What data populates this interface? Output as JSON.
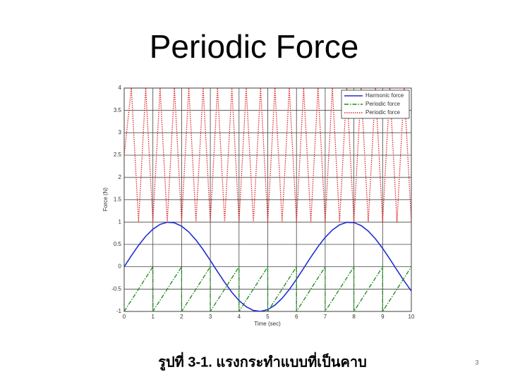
{
  "chart_data": {
    "type": "line",
    "title": "Periodic Force",
    "xlabel": "Time (sec)",
    "ylabel": "Force (N)",
    "xlim": [
      0,
      10
    ],
    "ylim": [
      -1,
      4
    ],
    "xticks": [
      0,
      1,
      2,
      3,
      4,
      5,
      6,
      7,
      8,
      9,
      10
    ],
    "yticks": [
      -1,
      -0.5,
      0,
      0.5,
      1,
      1.5,
      2,
      2.5,
      3,
      3.5,
      4
    ],
    "grid": true,
    "legend": "upper right",
    "series": [
      {
        "name": "Harmonic force",
        "color": "#1f2fd0",
        "style": "solid",
        "x": [
          0,
          0.25,
          0.5,
          0.75,
          1,
          1.25,
          1.5,
          1.75,
          2,
          2.25,
          2.5,
          2.75,
          3,
          3.25,
          3.5,
          3.75,
          4,
          4.25,
          4.5,
          4.75,
          5,
          5.25,
          5.5,
          5.75,
          6,
          6.25,
          6.5,
          6.75,
          7,
          7.25,
          7.5,
          7.75,
          8,
          8.25,
          8.5,
          8.75,
          9,
          9.25,
          9.5,
          9.75,
          10
        ],
        "values": [
          0,
          0.247,
          0.479,
          0.682,
          0.841,
          0.949,
          0.997,
          0.984,
          0.909,
          0.778,
          0.598,
          0.382,
          0.141,
          -0.108,
          -0.351,
          -0.572,
          -0.757,
          -0.895,
          -0.978,
          -0.999,
          -0.959,
          -0.859,
          -0.706,
          -0.51,
          -0.279,
          -0.033,
          0.215,
          0.45,
          0.657,
          0.823,
          0.938,
          0.995,
          0.989,
          0.923,
          0.798,
          0.625,
          0.412,
          0.174,
          -0.075,
          -0.319,
          -0.544
        ]
      },
      {
        "name": "Periodic force",
        "color": "#1a8a1a",
        "style": "dashdot",
        "x": [
          0,
          1,
          1,
          2,
          2,
          3,
          3,
          4,
          4,
          5,
          5,
          6,
          6,
          7,
          7,
          8,
          8,
          9,
          9,
          10
        ],
        "values": [
          -1,
          0,
          -1,
          0,
          -1,
          0,
          -1,
          0,
          -1,
          0,
          -1,
          0,
          -1,
          0,
          -1,
          0,
          -1,
          0,
          -1,
          0
        ]
      },
      {
        "name": "Periodic force",
        "color": "#e0252a",
        "style": "dotted",
        "x": [
          0,
          0.25,
          0.5,
          0.75,
          1,
          1.25,
          1.5,
          1.75,
          2,
          2.25,
          2.5,
          2.75,
          3,
          3.25,
          3.5,
          3.75,
          4,
          4.25,
          4.5,
          4.75,
          5,
          5.25,
          5.5,
          5.75,
          6,
          6.25,
          6.5,
          6.75,
          7,
          7.25,
          7.5,
          7.75,
          8,
          8.25,
          8.5,
          8.75,
          9,
          9.25,
          9.5,
          9.75,
          10
        ],
        "values": [
          2.5,
          4,
          1,
          4,
          1,
          4,
          1,
          4,
          1,
          4,
          1,
          4,
          1,
          4,
          1,
          4,
          1,
          4,
          1,
          4,
          1,
          4,
          1,
          4,
          1,
          4,
          1,
          4,
          1,
          4,
          1,
          4,
          1,
          4,
          1,
          4,
          1,
          4,
          1,
          4,
          1
        ]
      }
    ]
  },
  "slide": {
    "caption": "รูปที่ 3-1. แรงกระทำแบบที่เป็นคาบ",
    "page_number": "3"
  }
}
